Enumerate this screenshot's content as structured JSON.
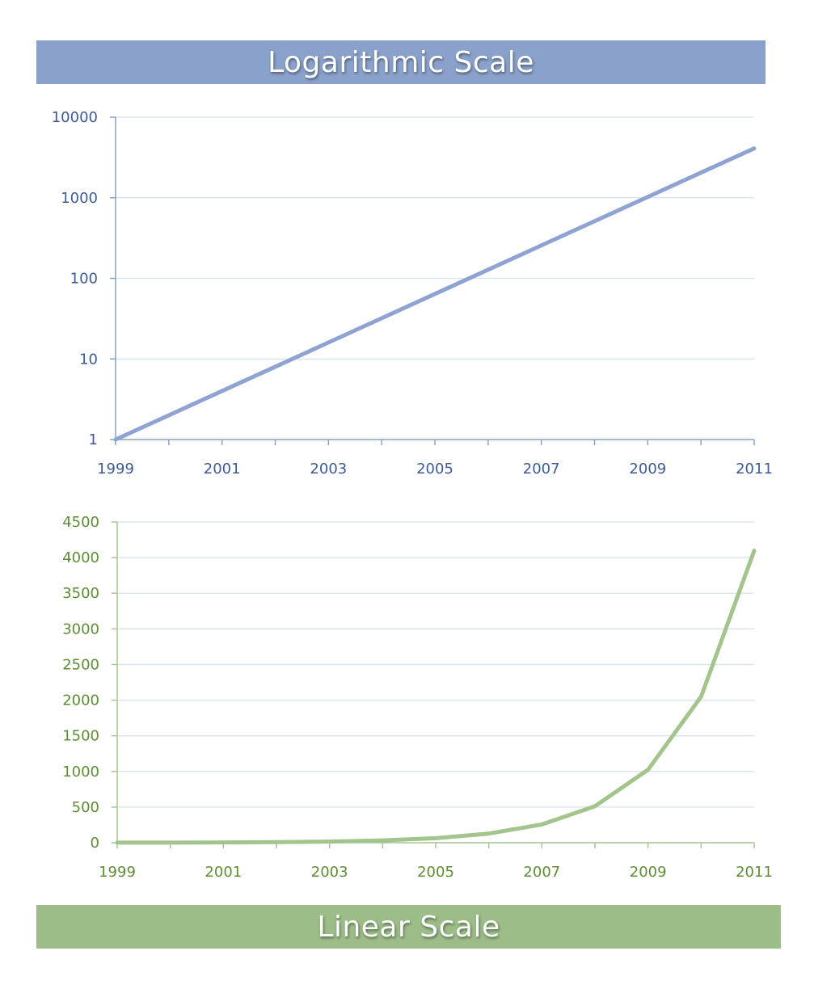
{
  "colors": {
    "log_banner": "#8aa2cb",
    "log_line": "#8ea3d2",
    "log_axis": "#8aa2cb",
    "log_text": "#3d5a99",
    "linear_banner": "#9cbd88",
    "linear_line": "#a3c48c",
    "linear_axis": "#a6c593",
    "linear_text": "#5e8d35",
    "grid": "#d8e2e8"
  },
  "chart_data": [
    {
      "type": "line",
      "title": "Logarithmic Scale",
      "xlabel": "",
      "ylabel": "",
      "yscale": "log",
      "xlim": [
        1999,
        2011
      ],
      "ylim": [
        1,
        10000
      ],
      "x_tick_labels": [
        "1999",
        "2001",
        "2003",
        "2005",
        "2007",
        "2009",
        "2011"
      ],
      "y_tick_labels": [
        "1",
        "10",
        "100",
        "1000",
        "10000"
      ],
      "grid": true,
      "x": [
        1999,
        2000,
        2001,
        2002,
        2003,
        2004,
        2005,
        2006,
        2007,
        2008,
        2009,
        2010,
        2011
      ],
      "y": [
        1,
        2,
        4,
        8,
        16,
        32,
        64,
        128,
        256,
        512,
        1024,
        2048,
        4096
      ]
    },
    {
      "type": "line",
      "title": "Linear Scale",
      "xlabel": "",
      "ylabel": "",
      "yscale": "linear",
      "xlim": [
        1999,
        2011
      ],
      "ylim": [
        0,
        4500
      ],
      "x_tick_labels": [
        "1999",
        "2001",
        "2003",
        "2005",
        "2007",
        "2009",
        "2011"
      ],
      "y_tick_labels": [
        "0",
        "500",
        "1000",
        "1500",
        "2000",
        "2500",
        "3000",
        "3500",
        "4000",
        "4500"
      ],
      "grid": true,
      "x": [
        1999,
        2000,
        2001,
        2002,
        2003,
        2004,
        2005,
        2006,
        2007,
        2008,
        2009,
        2010,
        2011
      ],
      "y": [
        1,
        2,
        4,
        8,
        16,
        32,
        64,
        128,
        256,
        512,
        1024,
        2048,
        4096
      ]
    }
  ]
}
